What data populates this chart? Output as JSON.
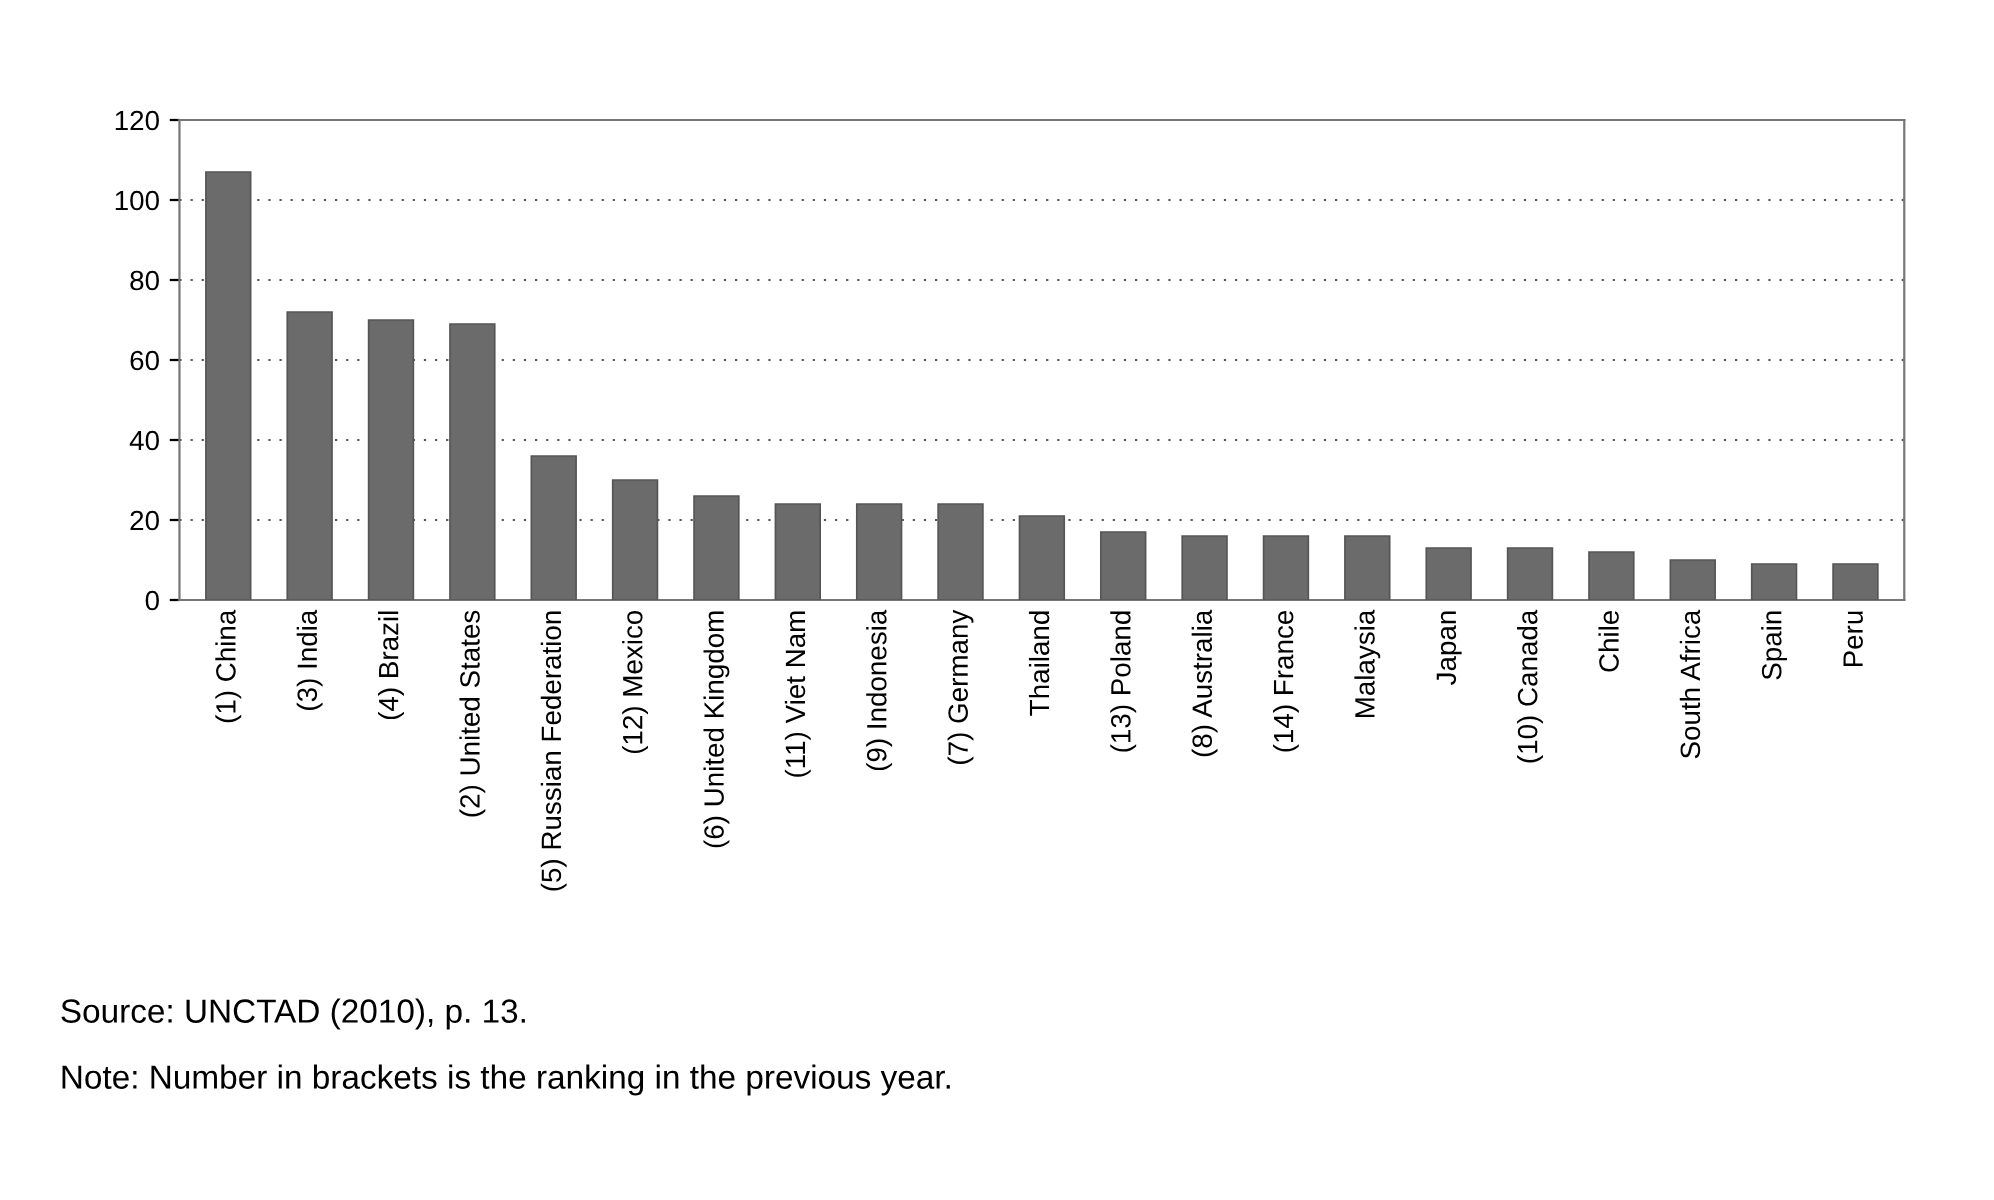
{
  "chart_data": {
    "type": "bar",
    "categories": [
      "(1) China",
      "(3) India",
      "(4) Brazil",
      "(2) United States",
      "(5) Russian Federation",
      "(12) Mexico",
      "(6) United Kingdom",
      "(11) Viet Nam",
      "(9) Indonesia",
      "(7) Germany",
      "Thailand",
      "(13) Poland",
      "(8) Australia",
      "(14) France",
      "Malaysia",
      "Japan",
      "(10) Canada",
      "Chile",
      "South Africa",
      "Spain",
      "Peru"
    ],
    "values": [
      107,
      72,
      70,
      69,
      36,
      30,
      26,
      24,
      24,
      24,
      21,
      17,
      16,
      16,
      16,
      13,
      13,
      12,
      10,
      9,
      9
    ],
    "color": "#6b6b6b",
    "ylim": [
      0,
      120
    ],
    "yticks": [
      0,
      20,
      40,
      60,
      80,
      100,
      120
    ],
    "grid": "y",
    "legend": false,
    "annotations": [
      "Source: UNCTAD (2010), p. 13.",
      "Note: Number in brackets is the ranking in the previous year."
    ]
  }
}
